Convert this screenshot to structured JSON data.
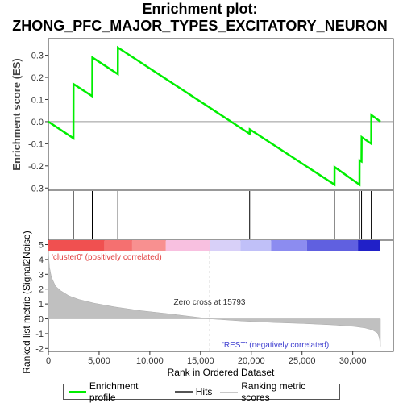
{
  "title_line1": "Enrichment plot:",
  "title_line2": "ZHONG_PFC_MAJOR_TYPES_EXCITATORY_NEURON",
  "colors": {
    "profile": "#00ee00",
    "hits": "#000000",
    "metric_fill": "#c0c0c0",
    "pos_label": "#e04040",
    "neg_label": "#4040d0"
  },
  "chart_data": [
    {
      "type": "line",
      "name": "enrichment",
      "ylabel": "Enrichment score (ES)",
      "ylim": [
        -0.31,
        0.375
      ],
      "yticks": [
        -0.3,
        -0.2,
        -0.1,
        0.0,
        0.1,
        0.2,
        0.3
      ],
      "ytick_labels": [
        "-0.3",
        "-0.2",
        "-0.1",
        "0.0",
        "0.1",
        "0.2",
        "0.3"
      ],
      "xlim": [
        0,
        32500
      ],
      "grid": false,
      "series": [
        {
          "x": [
            0,
            2450,
            2460,
            4300,
            4310,
            6800,
            6810,
            19700,
            19710,
            28000,
            28010,
            30450,
            30460,
            30650,
            30660,
            31600,
            31610,
            32500
          ],
          "y": [
            0.0,
            -0.075,
            0.17,
            0.115,
            0.29,
            0.215,
            0.335,
            -0.055,
            -0.035,
            -0.285,
            -0.205,
            -0.285,
            -0.175,
            -0.18,
            -0.07,
            -0.1,
            0.03,
            0.0
          ]
        }
      ]
    },
    {
      "type": "scatter",
      "name": "hits",
      "hit_ranks": [
        2450,
        4300,
        6800,
        19700,
        28000,
        30450,
        30650,
        31600
      ]
    },
    {
      "type": "heatmap",
      "name": "rank-colorbar",
      "segments": [
        {
          "from": 0,
          "to": 5500,
          "color": "#f05050"
        },
        {
          "from": 5500,
          "to": 8200,
          "color": "#f57070"
        },
        {
          "from": 8200,
          "to": 11500,
          "color": "#f89090"
        },
        {
          "from": 11500,
          "to": 15793,
          "color": "#f8c0e0"
        },
        {
          "from": 15793,
          "to": 18800,
          "color": "#d8d0f8"
        },
        {
          "from": 18800,
          "to": 21800,
          "color": "#c0c0f8"
        },
        {
          "from": 21800,
          "to": 25300,
          "color": "#8c8cf0"
        },
        {
          "from": 25300,
          "to": 30300,
          "color": "#6060e0"
        },
        {
          "from": 30300,
          "to": 32500,
          "color": "#2020c8"
        }
      ]
    },
    {
      "type": "area",
      "name": "ranked-metric",
      "xlabel": "Rank in Ordered Dataset",
      "ylabel": "Ranked list metric (Signal2Noise)",
      "ylim": [
        -2.2,
        5.3
      ],
      "yticks": [
        -2,
        -1,
        0,
        1,
        2,
        3,
        4,
        5
      ],
      "ytick_labels": [
        "-2",
        "-1",
        "0",
        "1",
        "2",
        "3",
        "4",
        "5"
      ],
      "xlim": [
        0,
        34000
      ],
      "xticks": [
        0,
        5000,
        10000,
        15000,
        20000,
        25000,
        30000
      ],
      "xtick_labels": [
        "0",
        "5,000",
        "10,000",
        "15,000",
        "20,000",
        "25,000",
        "30,000"
      ],
      "series": [
        {
          "x": [
            0,
            100,
            300,
            700,
            1200,
            2000,
            3000,
            4500,
            6500,
            9000,
            12000,
            15793,
            19000,
            22000,
            25000,
            28000,
            30000,
            31000,
            31700,
            32200,
            32400,
            32500
          ],
          "y": [
            4.6,
            3.5,
            2.8,
            2.2,
            1.9,
            1.55,
            1.3,
            1.05,
            0.8,
            0.55,
            0.32,
            0.0,
            -0.15,
            -0.25,
            -0.32,
            -0.42,
            -0.52,
            -0.62,
            -0.75,
            -0.95,
            -1.3,
            -1.85
          ]
        }
      ],
      "zero_cross_label": "Zero cross at 15793",
      "zero_cross_x": 15793,
      "pos_label": "'cluster0' (positively correlated)",
      "neg_label": "'REST' (negatively correlated)"
    }
  ],
  "legend": {
    "profile_label": "Enrichment profile",
    "hits_label": "Hits",
    "scores_label": "Ranking metric scores"
  }
}
